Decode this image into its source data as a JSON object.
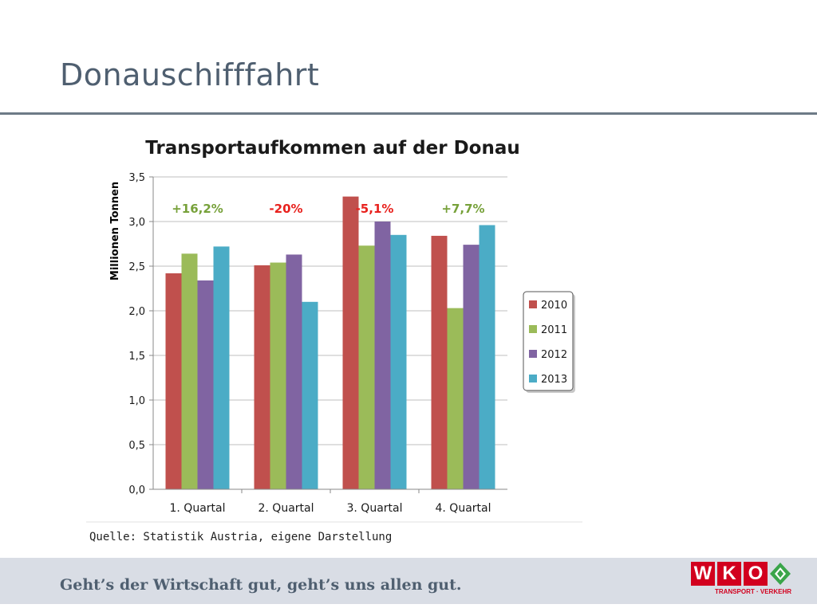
{
  "page": {
    "title": "Donauschifffahrt",
    "source": "Quelle: Statistik Austria, eigene Darstellung",
    "slogan": "Geht’s der Wirtschaft gut, geht’s uns allen gut.",
    "logo": {
      "letters": [
        "W",
        "K",
        "O"
      ],
      "sub": "TRANSPORT · VERKEHR"
    }
  },
  "chart_data": {
    "type": "bar",
    "title": "Transportaufkommen auf der Donau",
    "xlabel": "",
    "ylabel": "Millionen Tonnen",
    "ylim": [
      0,
      3.5
    ],
    "ytick_values": [
      0,
      0.5,
      1.0,
      1.5,
      2.0,
      2.5,
      3.0,
      3.5
    ],
    "yticks": [
      "0,0",
      "0,5",
      "1,0",
      "1,5",
      "2,0",
      "2,5",
      "3,0",
      "3,5"
    ],
    "grid": true,
    "legend_position": "right",
    "categories": [
      "1. Quartal",
      "2. Quartal",
      "3. Quartal",
      "4. Quartal"
    ],
    "series": [
      {
        "name": "2010",
        "color": "#c0504d",
        "values": [
          2.42,
          2.51,
          3.28,
          2.84
        ]
      },
      {
        "name": "2011",
        "color": "#9bbb59",
        "values": [
          2.64,
          2.54,
          2.73,
          2.03
        ]
      },
      {
        "name": "2012",
        "color": "#8064a2",
        "values": [
          2.34,
          2.63,
          3.0,
          2.74
        ]
      },
      {
        "name": "2013",
        "color": "#4bacc6",
        "values": [
          2.72,
          2.1,
          2.85,
          2.96
        ]
      }
    ],
    "annotations": [
      {
        "text": "+16,2%",
        "category": "1. Quartal",
        "color": "#77a13a"
      },
      {
        "text": "-20%",
        "category": "2. Quartal",
        "color": "#e8211d"
      },
      {
        "text": "-5,1%",
        "category": "3. Quartal",
        "color": "#e8211d"
      },
      {
        "text": "+7,7%",
        "category": "4. Quartal",
        "color": "#77a13a"
      }
    ]
  }
}
